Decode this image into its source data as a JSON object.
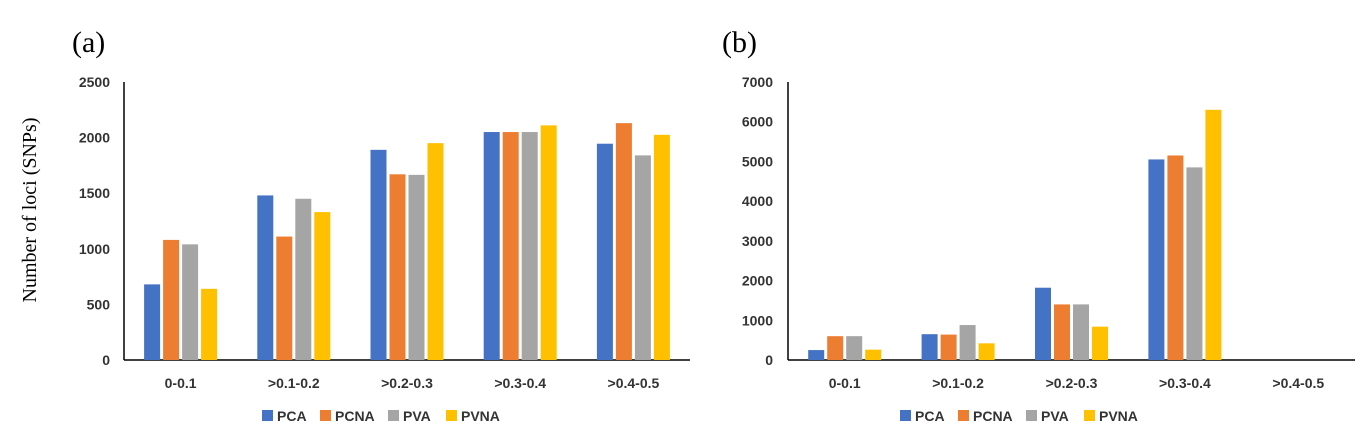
{
  "chart_data": [
    {
      "type": "bar",
      "panel_label": "(a)",
      "ylabel": "Number of loci (SNPs)",
      "xlabel": "",
      "categories": [
        "0-0.1",
        ">0.1-0.2",
        ">0.2-0.3",
        ">0.3-0.4",
        ">0.4-0.5"
      ],
      "ylim": [
        0,
        2500
      ],
      "yticks": [
        "0",
        "500",
        "1000",
        "1500",
        "2000",
        "2500"
      ],
      "series": [
        {
          "name": "PCA",
          "color": "#4472C4",
          "values": [
            680,
            1480,
            1890,
            2050,
            1945
          ]
        },
        {
          "name": "PCNA",
          "color": "#ED7D31",
          "values": [
            1080,
            1110,
            1670,
            2050,
            2130
          ]
        },
        {
          "name": "PVA",
          "color": "#A5A5A5",
          "values": [
            1040,
            1450,
            1665,
            2050,
            1840
          ]
        },
        {
          "name": "PVNA",
          "color": "#FFC000",
          "values": [
            640,
            1330,
            1950,
            2110,
            2025
          ]
        }
      ],
      "legend": "bottom-center"
    },
    {
      "type": "bar",
      "panel_label": "(b)",
      "ylabel": "",
      "xlabel": "",
      "categories": [
        "0-0.1",
        ">0.1-0.2",
        ">0.2-0.3",
        ">0.3-0.4",
        ">0.4-0.5"
      ],
      "ylim": [
        0,
        7000
      ],
      "yticks": [
        "0",
        "1000",
        "2000",
        "3000",
        "4000",
        "5000",
        "6000",
        "7000"
      ],
      "series": [
        {
          "name": "PCA",
          "color": "#4472C4",
          "values": [
            250,
            650,
            1820,
            5050,
            0
          ]
        },
        {
          "name": "PCNA",
          "color": "#ED7D31",
          "values": [
            600,
            640,
            1400,
            5150,
            0
          ]
        },
        {
          "name": "PVA",
          "color": "#A5A5A5",
          "values": [
            600,
            880,
            1400,
            4850,
            0
          ]
        },
        {
          "name": "PVNA",
          "color": "#FFC000",
          "values": [
            260,
            420,
            840,
            6300,
            0
          ]
        }
      ],
      "legend": "bottom-center"
    }
  ]
}
